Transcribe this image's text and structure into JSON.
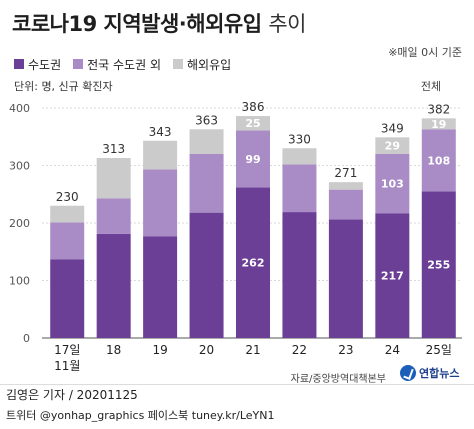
{
  "header": {
    "title_main": "코로나19 지역발생·해외유입",
    "title_suffix": "추이",
    "note": "※매일 0시 기준"
  },
  "unit": "단위: 명, 신규 확진자",
  "total_label": "전체",
  "source": "자료/중앙방역대책본부",
  "logo_text": "연합뉴스",
  "credit_line1": "김영은 기자 / 20201125",
  "credit_line2": "트위터 @yonhap_graphics  페이스북 tuney.kr/LeYN1",
  "chart_data": {
    "type": "bar",
    "stacked": true,
    "categories": [
      "17일",
      "18",
      "19",
      "20",
      "21",
      "22",
      "23",
      "24",
      "25일"
    ],
    "month_label": "11월",
    "series": [
      {
        "name": "수도권",
        "color": "#6b3f96",
        "values": [
          137,
          181,
          177,
          218,
          262,
          219,
          206,
          217,
          255
        ]
      },
      {
        "name": "전국 수도권 외",
        "color": "#a98bc6",
        "values": [
          64,
          62,
          116,
          102,
          99,
          83,
          52,
          103,
          108
        ]
      },
      {
        "name": "해외유입",
        "color": "#cbcbcb",
        "values": [
          29,
          70,
          50,
          43,
          25,
          28,
          13,
          29,
          19
        ]
      }
    ],
    "totals": [
      230,
      313,
      343,
      363,
      386,
      330,
      271,
      349,
      382
    ],
    "value_labels": [
      {
        "bar": 4,
        "series": 0,
        "text": "262"
      },
      {
        "bar": 4,
        "series": 1,
        "text": "99"
      },
      {
        "bar": 4,
        "series": 2,
        "text": "25"
      },
      {
        "bar": 7,
        "series": 0,
        "text": "217"
      },
      {
        "bar": 7,
        "series": 1,
        "text": "103"
      },
      {
        "bar": 7,
        "series": 2,
        "text": "29"
      },
      {
        "bar": 8,
        "series": 0,
        "text": "255"
      },
      {
        "bar": 8,
        "series": 1,
        "text": "108"
      },
      {
        "bar": 8,
        "series": 2,
        "text": "19"
      }
    ],
    "y_ticks": [
      0,
      100,
      200,
      300,
      400
    ],
    "ylim": [
      0,
      400
    ],
    "grid": true,
    "legend": "top-left"
  }
}
